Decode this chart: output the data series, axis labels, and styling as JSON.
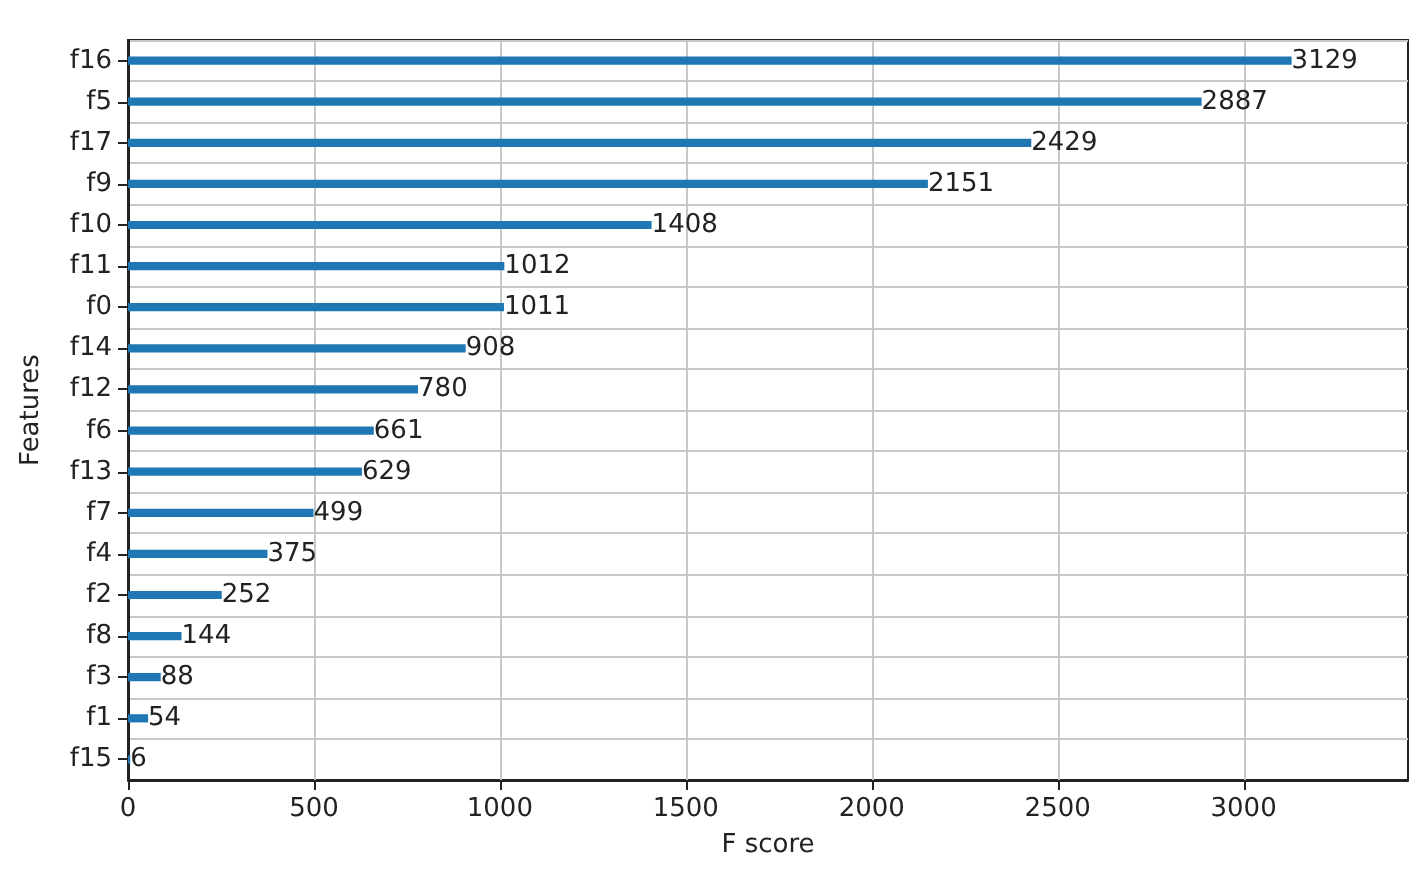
{
  "chart_data": {
    "type": "bar",
    "orientation": "horizontal",
    "xlabel": "F score",
    "ylabel": "Features",
    "categories": [
      "f16",
      "f5",
      "f17",
      "f9",
      "f10",
      "f11",
      "f0",
      "f14",
      "f12",
      "f6",
      "f13",
      "f7",
      "f4",
      "f2",
      "f8",
      "f3",
      "f1",
      "f15"
    ],
    "values": [
      3129,
      2887,
      2429,
      2151,
      1408,
      1012,
      1011,
      908,
      780,
      661,
      629,
      499,
      375,
      252,
      144,
      88,
      54,
      6
    ],
    "color": "#1f77b4",
    "data_labels": true,
    "grid": true,
    "xlim": [
      0,
      3442
    ],
    "xticks": [
      0,
      500,
      1000,
      1500,
      2000,
      2500,
      3000
    ]
  }
}
